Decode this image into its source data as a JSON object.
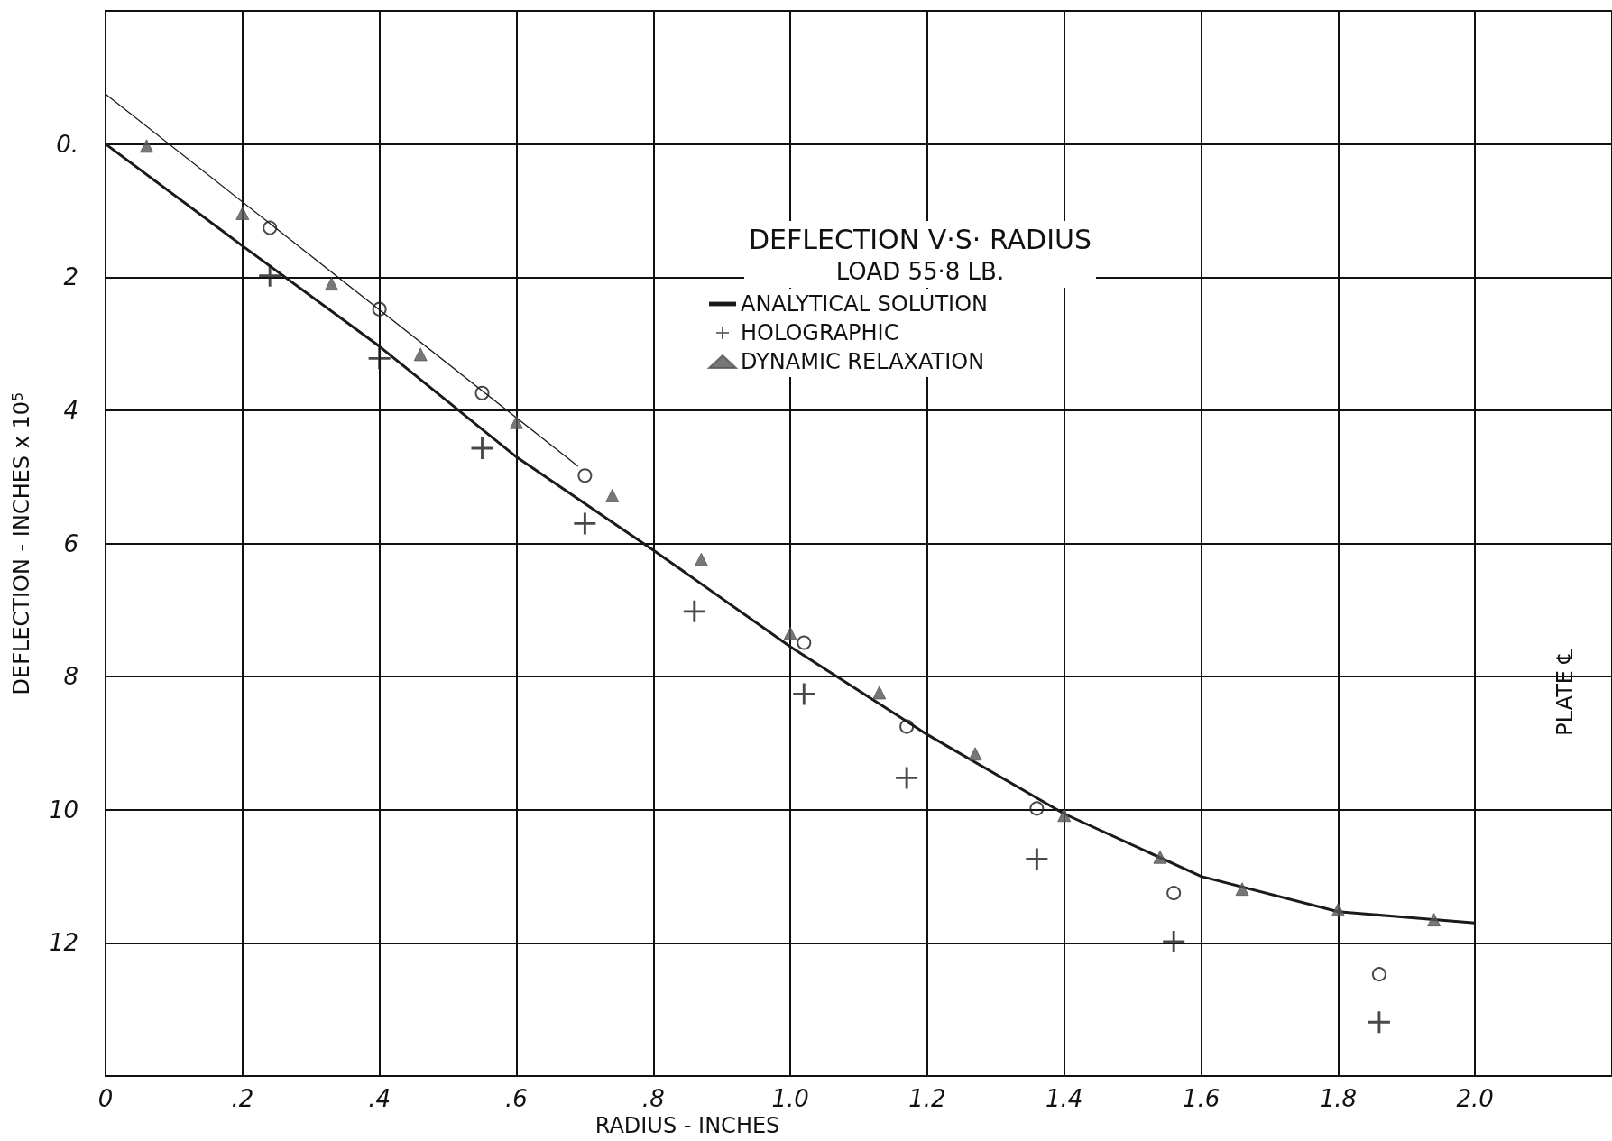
{
  "chart_data": {
    "type": "scatter",
    "title": "DEFLECTION V·S· RADIUS",
    "subtitle": "LOAD 55·8 LB.",
    "xlabel": "RADIUS - INCHES",
    "ylabel": "DEFLECTION - INCHES x 10$^{5}$",
    "annotations": [
      "PLATE ℄"
    ],
    "xlim": [
      0,
      2.2
    ],
    "xticks": [
      0,
      {
        "value": 0.2,
        "label": ".2"
      },
      {
        "value": 0.4,
        "label": ".4"
      },
      {
        "value": 0.6,
        "label": ".6"
      },
      {
        "value": 0.8,
        "label": ".8"
      },
      {
        "value": 1.0,
        "label": "1.0"
      },
      {
        "value": 1.2,
        "label": "1.2"
      },
      {
        "value": 1.4,
        "label": "1.4"
      },
      {
        "value": 1.6,
        "label": "1.6"
      },
      {
        "value": 1.8,
        "label": "1.8"
      },
      {
        "value": 2.0,
        "label": "2.0"
      }
    ],
    "ylim": [
      14,
      -2
    ],
    "yticks": [
      {
        "value": 0,
        "label": "0."
      },
      2,
      4,
      6,
      8,
      10,
      12
    ],
    "grid": true,
    "legend": "top",
    "series": [
      {
        "name": "ANALYTICAL SOLUTION",
        "type": "line",
        "marker": "none",
        "color": "#1a1a1a",
        "x": [
          0,
          0.2,
          0.4,
          0.6,
          0.8,
          1.0,
          1.2,
          1.4,
          1.6,
          1.8,
          2.0
        ],
        "values": [
          0,
          1.53,
          3.04,
          4.7,
          6.1,
          7.55,
          8.87,
          10.06,
          11.0,
          11.53,
          11.7
        ]
      },
      {
        "type": "line",
        "marker": "none",
        "color": "#1a1a1a",
        "x": [
          0,
          0.69
        ],
        "values": [
          -0.75,
          4.84
        ]
      },
      {
        "name": "HOLOGRAPHIC",
        "marker": "cross",
        "color": "#1a1a1a",
        "x": [
          0.24,
          0.4,
          0.55,
          0.7,
          0.86,
          1.02,
          1.17,
          1.36,
          1.56,
          1.86
        ],
        "values": [
          1.98,
          3.22,
          4.57,
          5.7,
          7.02,
          8.26,
          9.52,
          10.74,
          11.98,
          13.19
        ]
      },
      {
        "marker": "circle",
        "color": "#1a1a1a",
        "x": [
          0.24,
          0.4,
          0.55,
          0.7,
          1.02,
          1.17,
          1.36,
          1.56,
          1.86
        ],
        "values": [
          1.26,
          2.48,
          3.74,
          4.98,
          7.49,
          8.75,
          9.98,
          11.25,
          12.47
        ]
      },
      {
        "name": "DYNAMIC RELAXATION",
        "marker": "triangle",
        "color": "#555555",
        "x": [
          0.06,
          0.2,
          0.33,
          0.46,
          0.6,
          0.74,
          0.87,
          1.0,
          1.13,
          1.27,
          1.4,
          1.54,
          1.66,
          1.8,
          1.94
        ],
        "values": [
          0.03,
          1.04,
          2.1,
          3.16,
          4.18,
          5.28,
          6.24,
          7.35,
          8.24,
          9.16,
          10.08,
          10.71,
          11.19,
          11.5,
          11.65
        ]
      }
    ]
  }
}
